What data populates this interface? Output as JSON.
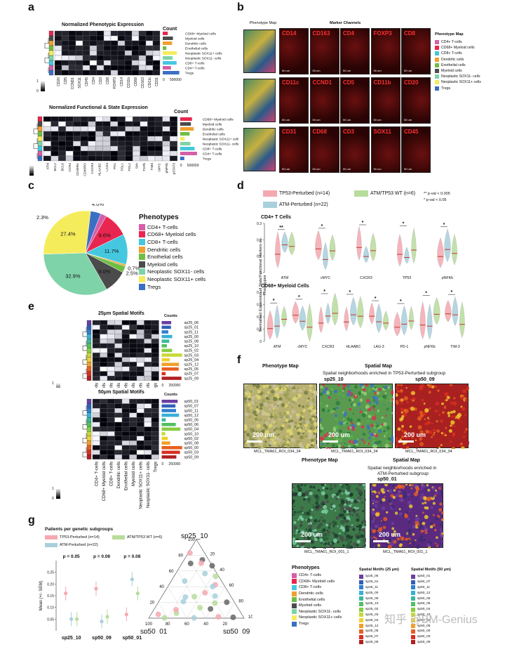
{
  "panels": {
    "a": "a",
    "b": "b",
    "c": "c",
    "d": "d",
    "e": "e",
    "f": "f",
    "g": "g"
  },
  "panel_a": {
    "title1": "Normalized Phenotypic Expression",
    "title2": "Normalized Functional & State Expression",
    "count_label": "Count",
    "count_ticks": [
      "0",
      "500000"
    ],
    "scale_top": "1",
    "scale_bottom": "0",
    "rows": [
      "CD68+ Myeloid cells",
      "Myeloid cells",
      "Dendritic cells",
      "Enothelial cells",
      "Neoplastic SOX11+ cells",
      "Neoplastic SOX11- cells",
      "CD8+ T-cells",
      "CD4+ T-cells",
      "Tregs"
    ],
    "rows2": [
      "CD68+ Myeloid cells",
      "Myeloid cells",
      "Dendritic cells",
      "Enothelial cells",
      "Neoplastic SOX11+ cells",
      "Neoplastic SOX11- cells",
      "CD8+ T-cells",
      "CD4+ T-cells",
      "Tregs"
    ],
    "cols1": [
      "CD20",
      "CD5",
      "CCND1",
      "SOX11",
      "CD45",
      "CD4",
      "CD3",
      "CD8",
      "FOXP3",
      "CD14",
      "CD11b",
      "CD68",
      "CD163",
      "CD11c",
      "CD31"
    ],
    "cols2": [
      "ATM",
      "BCL2",
      "BCL6",
      "CCR4",
      "CD45RA",
      "CD45RO",
      "CXCR3",
      "HLAABC",
      "LAG3",
      "PD1",
      "PDL1",
      "PDL2",
      "Shh",
      "TGFb",
      "TIM3",
      "cMYC",
      "pNFKb",
      "pSTAT3"
    ]
  },
  "panel_b": {
    "phenotype_map_label": "Phenotype Map",
    "marker_channels_label": "Marker Channels",
    "markers_row1": [
      "CD14",
      "CD163",
      "CD4",
      "FOXP3",
      "CD8"
    ],
    "markers_row2": [
      "CD11c",
      "CCND1",
      "CD5",
      "CD11b",
      "CD20"
    ],
    "markers_row3": [
      "CD31",
      "CD68",
      "CD3",
      "SOX11",
      "CD45"
    ],
    "scale_text": "50 um",
    "legend_title": "Phenotype Map",
    "legend": [
      "CD4+ T-cells",
      "CD68+ Myeloid cells",
      "CD8+ T-cells",
      "Dendritic cells",
      "Enothelial cells",
      "Myeloid cells",
      "Neoplastic SOX11- cells",
      "Neoplastic SOX11+ cells",
      "Tregs"
    ]
  },
  "panel_c": {
    "legend_title": "Phenotypes",
    "legend": [
      "CD4+ T-cells",
      "CD68+ Myeloid cells",
      "CD8+ T-cells",
      "Dendritic cells",
      "Enothelial cells",
      "Myeloid cells",
      "Neoplastic SOX11- cells",
      "Neoplastic SOX11+ cells",
      "Tregs"
    ]
  },
  "panel_d": {
    "legend_tp53": "TP53-Perturbed (n=14)",
    "legend_atm_tp53": "ATM/TP53 WT (n=6)",
    "legend_atm": "ATM-Perturbed (n=22)",
    "sig2": "** p-val < 0.005",
    "sig1": "* p-val < 0.05",
    "subtitle1": "CD4+ T Cells",
    "subtitle2": "CD68+ Myeloid Cells",
    "ylabel": "Normalised Expression of State/Functional Markers on Phenotypes",
    "yticks1": [
      "0.3",
      "0.2",
      "0.1",
      "0"
    ],
    "yticks2": [
      "0.4",
      "0.3",
      "0.2",
      "0.1",
      "0"
    ],
    "xcats1": [
      "ATM",
      "cMYC",
      "CXCR3",
      "TP53",
      "pNFKb"
    ],
    "stars1": [
      "**",
      "*",
      "*",
      "*",
      "*"
    ],
    "xcats2": [
      "ATM",
      "cMYC",
      "CXCR3",
      "HLAABC",
      "LAG-3",
      "PD-1",
      "pNFKb",
      "TIM-3"
    ],
    "stars2": [
      "*",
      "*",
      "*",
      "*",
      "*",
      "*",
      "*",
      "*"
    ]
  },
  "panel_e": {
    "title1": "25μm Spatial Motifs",
    "title2": "50μm Spatial Motifs",
    "counts_label": "Counts",
    "count_ticks": [
      "0",
      "250000"
    ],
    "scale_top": "1",
    "scale_bottom": "0",
    "rows1": [
      "sp25_06",
      "sp25_01",
      "sp25_11",
      "sp25_00",
      "sp25_08",
      "sp25_10",
      "sp25_02",
      "sp25_03",
      "sp25_04",
      "sp25_12",
      "sp25_05",
      "sp25_07",
      "sp25_09"
    ],
    "rows2": [
      "sp50_01",
      "sp50_07",
      "sp50_11",
      "sp50_12",
      "sp50_05",
      "sp50_06",
      "sp50_04",
      "sp50_10",
      "sp50_02",
      "sp50_08",
      "sp50_00",
      "sp50_03",
      "sp50_09"
    ],
    "cols": [
      "CD4+ T-cells",
      "CD68+ Myeloid cells",
      "CD8+ T-cells",
      "Dendritic cells",
      "Enothelial cells",
      "Myeloid cells",
      "Neoplastic SOX11+ cells",
      "Neoplastic SOX11- cells",
      "Tregs"
    ]
  },
  "panel_f": {
    "phenotype_map": "Phenotype Map",
    "spatial_map": "Spatial Map",
    "enriched_tp53": "Spatial neighborhoods enriched in TP53-Perturbed subgroup",
    "sp25_10": "sp25_10",
    "sp50_09": "sp50_09",
    "enriched_atm_line1": "Spatial neighborhoods enriched in",
    "enriched_atm_line2": "ATM-Perturbed subgroup",
    "sp50_01": "sp50_01",
    "scale": "200 um",
    "roi1": "MCL_TMA61_ROI_034_34",
    "roi2": "MCL_TMA61_ROI_001_1",
    "phenotypes_title": "Phenotypes",
    "phenotypes": [
      "CD4+ T-cells",
      "CD68+ Myeloid cells",
      "CD8+ T-cells",
      "Dendritic cells",
      "Enothelial cells",
      "Myeloid cells",
      "Neoplastic SOX11- cells",
      "Neoplastic SOX11+ cells",
      "Tregs"
    ],
    "motifs25_title": "Spatial Motifs (25 μm)",
    "motifs25": [
      "sp25_06",
      "sp25_01",
      "sp25_11",
      "sp25_00",
      "sp25_08",
      "sp25_10",
      "sp25_02",
      "sp25_03",
      "sp25_04",
      "sp25_12",
      "sp25_05",
      "sp25_07",
      "sp25_09"
    ],
    "motifs50_title": "Spatial Motifs (50 μm)",
    "motifs50": [
      "sp50_01",
      "sp50_07",
      "sp50_11",
      "sp50_12",
      "sp50_05",
      "sp50_06",
      "sp50_04",
      "sp50_10",
      "sp50_02",
      "sp50_08",
      "sp50_00",
      "sp50_03",
      "sp50_09"
    ],
    "watermark": "知乎 @BM-Genius"
  },
  "panel_g": {
    "legend_title": "Patients per genetic subgroups",
    "legend_tp53": "TP53-Perturbed (n=14)",
    "legend_atm_tp53": "ATM/TP53 WT (n=6)",
    "legend_atm": "ATM-Perturbed (n=22)",
    "pvals": [
      "p = 0.05",
      "p = 0.08",
      "p = 0.08"
    ],
    "ylabel": "Mean (+/- SEM)",
    "yticks": [
      "0.25",
      "0.20",
      "0.15",
      "0.10",
      "0.05"
    ],
    "xcats": [
      "sp25_10",
      "sp50_09",
      "sp50_01"
    ],
    "ternary_top": "sp25_10",
    "ternary_left": "sp50_01",
    "ternary_right": "sp50_09",
    "ternary_ticks": [
      "20",
      "40",
      "60",
      "80",
      "100"
    ]
  },
  "colors": {
    "cd4": "#d55fa8",
    "cd68": "#e8264f",
    "cd8": "#45c7e0",
    "dendritic": "#f0a030",
    "endo": "#6fbe44",
    "myeloid": "#4b4b4b",
    "sox11neg": "#7fd3a8",
    "sox11pos": "#f5ec5c",
    "tregs": "#3a6fc4"
  },
  "chart_data": [
    {
      "type": "pie",
      "categories": [
        "Tregs",
        "CD4+ T-cells",
        "CD68+ Myeloid cells",
        "CD8+ T-cells",
        "Dendritic cells",
        "Enothelial cells",
        "Myeloid cells",
        "Neoplastic SOX11- cells",
        "Neoplastic SOX11+ cells"
      ],
      "labels": [
        "4.0%",
        "",
        "9.6%",
        "11.7%",
        "0.7%",
        "2.5%",
        "9.0%",
        "32.9%",
        "27.4%"
      ],
      "values": [
        4.0,
        2.3,
        9.6,
        11.7,
        0.7,
        2.5,
        9.0,
        32.9,
        27.4
      ],
      "extra_label": "2.3%"
    },
    {
      "type": "scatter",
      "title": "",
      "categories": [
        "sp25_10",
        "sp50_09",
        "sp50_01"
      ],
      "series": [
        {
          "name": "TP53-Perturbed (n=14)",
          "values": [
            0.16,
            0.18,
            0.07
          ],
          "color": "#f5a8b0"
        },
        {
          "name": "ATM-Perturbed (n=22)",
          "values": [
            0.05,
            0.04,
            0.22
          ],
          "color": "#a8d0dc"
        },
        {
          "name": "ATM/TP53 WT (n=6)",
          "values": [
            0.05,
            0.06,
            0.16
          ],
          "color": "#b8dc9c"
        }
      ],
      "ylim": [
        0,
        0.3
      ]
    }
  ]
}
